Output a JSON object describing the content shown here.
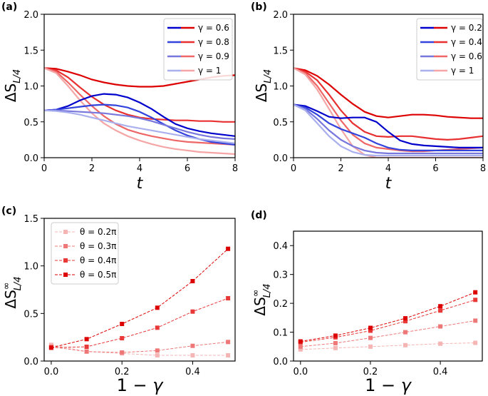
{
  "chart_data": [
    {
      "panel_label": "(a)",
      "type": "line",
      "xlabel": "t",
      "ylabel_main": "ΔS",
      "ylabel_sub": "L/4",
      "xlim": [
        0,
        8
      ],
      "ylim": [
        0,
        2.0
      ],
      "xticks": [
        0,
        2,
        4,
        6,
        8
      ],
      "xtick_labels": [
        "0",
        "2",
        "4",
        "6",
        "8"
      ],
      "yticks": [
        0,
        0.5,
        1.0,
        1.5,
        2.0
      ],
      "ytick_labels": [
        "0.0",
        "0.5",
        "1.0",
        "1.5",
        "2.0"
      ],
      "legend": [
        {
          "label": "γ = 0.6",
          "colors": [
            "#0000cc",
            "#dd0000"
          ]
        },
        {
          "label": "γ = 0.8",
          "colors": [
            "#3344dd",
            "#e83030"
          ]
        },
        {
          "label": "γ = 0.9",
          "colors": [
            "#7777dd",
            "#ee6666"
          ]
        },
        {
          "label": "γ = 1",
          "colors": [
            "#aab0ee",
            "#f5a5a5"
          ]
        }
      ],
      "series": [
        {
          "name": "red γ=0.6",
          "color": "#dd0000",
          "x": [
            0,
            0.5,
            1,
            1.5,
            2,
            2.5,
            3,
            3.5,
            4,
            4.5,
            5,
            5.5,
            6,
            6.5,
            7,
            7.5,
            8
          ],
          "y": [
            1.25,
            1.24,
            1.2,
            1.15,
            1.09,
            1.05,
            1.02,
            1.0,
            0.99,
            0.99,
            1.0,
            1.03,
            1.06,
            1.09,
            1.12,
            1.14,
            1.15
          ]
        },
        {
          "name": "red γ=0.8",
          "color": "#e83030",
          "x": [
            0,
            0.5,
            1,
            1.5,
            2,
            2.5,
            3,
            3.5,
            4,
            4.5,
            5,
            5.5,
            6,
            6.5,
            7,
            7.5,
            8
          ],
          "y": [
            1.25,
            1.22,
            1.12,
            0.98,
            0.85,
            0.74,
            0.66,
            0.6,
            0.56,
            0.54,
            0.53,
            0.52,
            0.52,
            0.51,
            0.51,
            0.5,
            0.5
          ]
        },
        {
          "name": "red γ=0.9",
          "color": "#ee6666",
          "x": [
            0,
            0.5,
            1,
            1.5,
            2,
            2.5,
            3,
            3.5,
            4,
            4.5,
            5,
            5.5,
            6,
            6.5,
            7,
            7.5,
            8
          ],
          "y": [
            1.25,
            1.2,
            1.05,
            0.88,
            0.72,
            0.58,
            0.47,
            0.39,
            0.34,
            0.3,
            0.27,
            0.24,
            0.22,
            0.21,
            0.2,
            0.19,
            0.18
          ]
        },
        {
          "name": "red γ=1",
          "color": "#f5a5a5",
          "x": [
            0,
            0.5,
            1,
            1.5,
            2,
            2.5,
            3,
            3.5,
            4,
            4.5,
            5,
            5.5,
            6,
            6.5,
            7,
            7.5,
            8
          ],
          "y": [
            1.25,
            1.18,
            1.0,
            0.8,
            0.62,
            0.48,
            0.38,
            0.3,
            0.24,
            0.19,
            0.15,
            0.12,
            0.1,
            0.08,
            0.07,
            0.06,
            0.05
          ]
        },
        {
          "name": "blue γ=0.6",
          "color": "#0000cc",
          "x": [
            0,
            0.5,
            1,
            1.5,
            2,
            2.5,
            3,
            3.5,
            4,
            4.5,
            5,
            5.5,
            6,
            6.5,
            7,
            7.5,
            8
          ],
          "y": [
            0.66,
            0.67,
            0.72,
            0.8,
            0.86,
            0.89,
            0.88,
            0.84,
            0.77,
            0.68,
            0.57,
            0.47,
            0.41,
            0.37,
            0.34,
            0.32,
            0.3
          ]
        },
        {
          "name": "blue γ=0.8",
          "color": "#3344dd",
          "x": [
            0,
            0.5,
            1,
            1.5,
            2,
            2.5,
            3,
            3.5,
            4,
            4.5,
            5,
            5.5,
            6,
            6.5,
            7,
            7.5,
            8
          ],
          "y": [
            0.66,
            0.67,
            0.69,
            0.71,
            0.73,
            0.74,
            0.73,
            0.7,
            0.64,
            0.56,
            0.47,
            0.38,
            0.31,
            0.26,
            0.22,
            0.2,
            0.18
          ]
        },
        {
          "name": "blue γ=0.9",
          "color": "#7777dd",
          "x": [
            0,
            0.5,
            1,
            1.5,
            2,
            2.5,
            3,
            3.5,
            4,
            4.5,
            5,
            5.5,
            6,
            6.5,
            7,
            7.5,
            8
          ],
          "y": [
            0.66,
            0.66,
            0.65,
            0.64,
            0.63,
            0.62,
            0.6,
            0.58,
            0.55,
            0.51,
            0.46,
            0.41,
            0.36,
            0.32,
            0.29,
            0.27,
            0.26
          ]
        },
        {
          "name": "blue γ=1",
          "color": "#aab0ee",
          "x": [
            0,
            0.5,
            1,
            1.5,
            2,
            2.5,
            3,
            3.5,
            4,
            4.5,
            5,
            5.5,
            6,
            6.5,
            7,
            7.5,
            8
          ],
          "y": [
            0.66,
            0.65,
            0.63,
            0.6,
            0.56,
            0.52,
            0.48,
            0.44,
            0.41,
            0.38,
            0.35,
            0.32,
            0.29,
            0.26,
            0.24,
            0.22,
            0.2
          ]
        }
      ]
    },
    {
      "panel_label": "(b)",
      "type": "line",
      "xlabel": "t",
      "ylabel_main": "ΔS",
      "ylabel_sub": "L/4",
      "xlim": [
        0,
        8
      ],
      "ylim": [
        0,
        2.0
      ],
      "xticks": [
        0,
        2,
        4,
        6,
        8
      ],
      "xtick_labels": [
        "0",
        "2",
        "4",
        "6",
        "8"
      ],
      "yticks": [
        0,
        0.5,
        1.0,
        1.5,
        2.0
      ],
      "ytick_labels": [
        "0.0",
        "0.5",
        "1.0",
        "1.5",
        "2.0"
      ],
      "legend": [
        {
          "label": "γ = 0.2",
          "colors": [
            "#0000cc",
            "#dd0000"
          ]
        },
        {
          "label": "γ = 0.4",
          "colors": [
            "#3344dd",
            "#e83030"
          ]
        },
        {
          "label": "γ = 0.6",
          "colors": [
            "#7777dd",
            "#ee6666"
          ]
        },
        {
          "label": "γ = 1",
          "colors": [
            "#aab0ee",
            "#f5a5a5"
          ]
        }
      ],
      "series": [
        {
          "name": "red γ=0.2",
          "color": "#dd0000",
          "x": [
            0,
            0.5,
            1,
            1.5,
            2,
            2.5,
            3,
            3.5,
            4,
            4.5,
            5,
            5.5,
            6,
            6.5,
            7,
            7.5,
            8
          ],
          "y": [
            1.25,
            1.22,
            1.14,
            1.02,
            0.88,
            0.75,
            0.64,
            0.58,
            0.56,
            0.58,
            0.6,
            0.6,
            0.59,
            0.57,
            0.56,
            0.55,
            0.55
          ]
        },
        {
          "name": "red γ=0.4",
          "color": "#e83030",
          "x": [
            0,
            0.5,
            1,
            1.5,
            2,
            2.5,
            3,
            3.5,
            4,
            4.5,
            5,
            5.5,
            6,
            6.5,
            7,
            7.5,
            8
          ],
          "y": [
            1.25,
            1.2,
            1.08,
            0.88,
            0.66,
            0.48,
            0.36,
            0.3,
            0.29,
            0.3,
            0.3,
            0.28,
            0.26,
            0.25,
            0.26,
            0.28,
            0.3
          ]
        },
        {
          "name": "red γ=0.6",
          "color": "#ee6666",
          "x": [
            0,
            0.5,
            1,
            1.5,
            2,
            2.5,
            3,
            3.5,
            4,
            4.5,
            5,
            5.5,
            6,
            6.5,
            7,
            7.5,
            8
          ],
          "y": [
            1.25,
            1.18,
            1.0,
            0.76,
            0.52,
            0.32,
            0.2,
            0.14,
            0.12,
            0.1,
            0.09,
            0.09,
            0.1,
            0.11,
            0.12,
            0.13,
            0.14
          ]
        },
        {
          "name": "red γ=1",
          "color": "#f5a5a5",
          "x": [
            0,
            0.5,
            1,
            1.5,
            2,
            2.5,
            3,
            3.5,
            4,
            4.5,
            5,
            5.5,
            6,
            6.5,
            7,
            7.5,
            8
          ],
          "y": [
            1.25,
            1.16,
            0.95,
            0.68,
            0.4,
            0.16,
            0.04,
            0.0,
            0.0,
            0.0,
            0.0,
            0.0,
            0.0,
            0.0,
            0.0,
            0.0,
            0.0
          ]
        },
        {
          "name": "blue γ=0.2",
          "color": "#0000cc",
          "x": [
            0,
            0.5,
            1,
            1.5,
            2,
            2.5,
            3,
            3.5,
            4,
            4.5,
            5,
            5.5,
            6,
            6.5,
            7,
            7.5,
            8
          ],
          "y": [
            0.74,
            0.72,
            0.65,
            0.57,
            0.55,
            0.56,
            0.56,
            0.5,
            0.36,
            0.24,
            0.19,
            0.17,
            0.16,
            0.15,
            0.14,
            0.14,
            0.14
          ]
        },
        {
          "name": "blue γ=0.4",
          "color": "#3344dd",
          "x": [
            0,
            0.5,
            1,
            1.5,
            2,
            2.5,
            3,
            3.5,
            4,
            4.5,
            5,
            5.5,
            6,
            6.5,
            7,
            7.5,
            8
          ],
          "y": [
            0.74,
            0.7,
            0.6,
            0.48,
            0.4,
            0.34,
            0.28,
            0.2,
            0.14,
            0.11,
            0.1,
            0.1,
            0.1,
            0.1,
            0.1,
            0.1,
            0.1
          ]
        },
        {
          "name": "blue γ=0.6",
          "color": "#7777dd",
          "x": [
            0,
            0.5,
            1,
            1.5,
            2,
            2.5,
            3,
            3.5,
            4,
            4.5,
            5,
            5.5,
            6,
            6.5,
            7,
            7.5,
            8
          ],
          "y": [
            0.74,
            0.68,
            0.54,
            0.38,
            0.25,
            0.16,
            0.1,
            0.07,
            0.06,
            0.06,
            0.06,
            0.06,
            0.06,
            0.06,
            0.06,
            0.06,
            0.06
          ]
        },
        {
          "name": "blue γ=1",
          "color": "#aab0ee",
          "x": [
            0,
            0.5,
            1,
            1.5,
            2,
            2.5,
            3,
            3.5,
            4,
            4.5,
            5,
            5.5,
            6,
            6.5,
            7,
            7.5,
            8
          ],
          "y": [
            0.74,
            0.66,
            0.48,
            0.3,
            0.16,
            0.08,
            0.04,
            0.03,
            0.03,
            0.03,
            0.03,
            0.03,
            0.03,
            0.03,
            0.03,
            0.03,
            0.03
          ]
        }
      ]
    },
    {
      "panel_label": "(c)",
      "type": "line",
      "xlabel_main": "1 − ",
      "xlabel_var": "γ",
      "ylabel_main": "ΔS",
      "ylabel_sup": "∞",
      "ylabel_sub": "L/4",
      "xlim": [
        -0.02,
        0.52
      ],
      "ylim": [
        0,
        1.5
      ],
      "xticks": [
        0,
        0.2,
        0.4
      ],
      "xtick_labels": [
        "0.0",
        "0.2",
        "0.4"
      ],
      "yticks": [
        0,
        0.5,
        1.0,
        1.5
      ],
      "ytick_labels": [
        "0.0",
        "0.5",
        "1.0",
        "1.5"
      ],
      "legend": [
        {
          "label": "θ = 0.2π",
          "colors": [
            "#f5b5b5"
          ]
        },
        {
          "label": "θ = 0.3π",
          "colors": [
            "#ee7777"
          ]
        },
        {
          "label": "θ = 0.4π",
          "colors": [
            "#e83838"
          ]
        },
        {
          "label": "θ = 0.5π",
          "colors": [
            "#dd0000"
          ]
        }
      ],
      "series": [
        {
          "name": "θ = 0.2π",
          "color": "#f5b5b5",
          "x": [
            0,
            0.1,
            0.2,
            0.3,
            0.4,
            0.5
          ],
          "y": [
            0.17,
            0.1,
            0.08,
            0.06,
            0.06,
            0.06
          ]
        },
        {
          "name": "θ = 0.3π",
          "color": "#ee7777",
          "x": [
            0,
            0.1,
            0.2,
            0.3,
            0.4,
            0.5
          ],
          "y": [
            0.15,
            0.1,
            0.09,
            0.11,
            0.16,
            0.2
          ]
        },
        {
          "name": "θ = 0.4π",
          "color": "#e83838",
          "x": [
            0,
            0.1,
            0.2,
            0.3,
            0.4,
            0.5
          ],
          "y": [
            0.14,
            0.15,
            0.24,
            0.35,
            0.52,
            0.66
          ]
        },
        {
          "name": "θ = 0.5π",
          "color": "#dd0000",
          "x": [
            0,
            0.1,
            0.2,
            0.3,
            0.4,
            0.5
          ],
          "y": [
            0.14,
            0.23,
            0.39,
            0.56,
            0.84,
            1.18
          ]
        }
      ]
    },
    {
      "panel_label": "(d)",
      "type": "line",
      "xlabel_main": "1 − ",
      "xlabel_var": "γ",
      "ylabel_main": "ΔS",
      "ylabel_sup": "∞",
      "ylabel_sub": "L/4",
      "xlim": [
        -0.02,
        0.52
      ],
      "ylim": [
        0,
        0.45
      ],
      "xticks": [
        0,
        0.2,
        0.4
      ],
      "xtick_labels": [
        "0.0",
        "0.2",
        "0.4"
      ],
      "yticks": [
        0,
        0.1,
        0.2,
        0.3,
        0.4
      ],
      "ytick_labels": [
        "0.0",
        "0.1",
        "0.2",
        "0.3",
        "0.4"
      ],
      "legend": [],
      "series": [
        {
          "name": "θ = 0.2π",
          "color": "#f5b5b5",
          "x": [
            0,
            0.1,
            0.2,
            0.3,
            0.4,
            0.5
          ],
          "y": [
            0.04,
            0.045,
            0.05,
            0.055,
            0.06,
            0.063
          ]
        },
        {
          "name": "θ = 0.3π",
          "color": "#ee7777",
          "x": [
            0,
            0.1,
            0.2,
            0.3,
            0.4,
            0.5
          ],
          "y": [
            0.05,
            0.062,
            0.08,
            0.1,
            0.12,
            0.14
          ]
        },
        {
          "name": "θ = 0.4π",
          "color": "#e83838",
          "x": [
            0,
            0.1,
            0.2,
            0.3,
            0.4,
            0.5
          ],
          "y": [
            0.065,
            0.082,
            0.105,
            0.138,
            0.175,
            0.212
          ]
        },
        {
          "name": "θ = 0.5π",
          "color": "#dd0000",
          "x": [
            0,
            0.1,
            0.2,
            0.3,
            0.4,
            0.5
          ],
          "y": [
            0.068,
            0.088,
            0.115,
            0.148,
            0.19,
            0.238
          ]
        }
      ]
    }
  ]
}
